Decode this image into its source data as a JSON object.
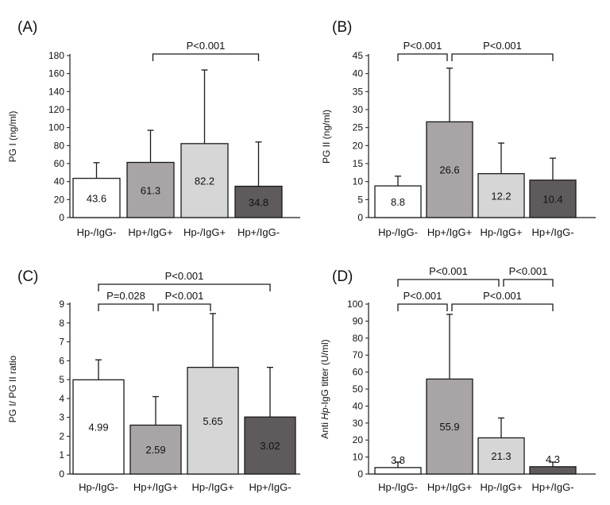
{
  "colors": {
    "bar_fills": [
      "#ffffff",
      "#a9a5a6",
      "#d6d6d6",
      "#5f5b5c"
    ],
    "stroke": "#1a1a1a"
  },
  "chart_data": [
    {
      "type": "bar",
      "panel_label": "(A)",
      "title": "",
      "xlabel": "",
      "ylabel": "PG I (ng/ml)",
      "ylabel_italic": "",
      "ylabel_suffix": "",
      "categories": [
        "Hp-/IgG-",
        "Hp+/IgG+",
        "Hp-/IgG+",
        "Hp+/IgG-"
      ],
      "values": [
        43.6,
        61.3,
        82.2,
        34.8
      ],
      "value_labels": [
        "43.6",
        "61.3",
        "82.2",
        "34.8"
      ],
      "error_upper": [
        61,
        97,
        164,
        84
      ],
      "ylim": [
        0,
        180
      ],
      "yticks": [
        "0",
        "20",
        "40",
        "60",
        "80",
        "100",
        "120",
        "140",
        "160",
        "180"
      ],
      "comparisons": [
        {
          "from": 1,
          "to": 3,
          "label": "P<0.001"
        }
      ]
    },
    {
      "type": "bar",
      "panel_label": "(B)",
      "title": "",
      "xlabel": "",
      "ylabel": "PG II (ng/ml)",
      "ylabel_italic": "",
      "ylabel_suffix": "",
      "categories": [
        "Hp-/IgG-",
        "Hp+/IgG+",
        "Hp-/IgG+",
        "Hp+/IgG-"
      ],
      "values": [
        8.8,
        26.6,
        12.2,
        10.4
      ],
      "value_labels": [
        "8.8",
        "26.6",
        "12.2",
        "10.4"
      ],
      "error_upper": [
        11.5,
        41.5,
        20.7,
        16.5
      ],
      "ylim": [
        0,
        45
      ],
      "yticks": [
        "0",
        "5",
        "10",
        "15",
        "20",
        "25",
        "30",
        "35",
        "40",
        "45"
      ],
      "comparisons": [
        {
          "from": 0,
          "to": 1,
          "label": "P<0.001"
        },
        {
          "from": 1,
          "to": 3,
          "label": "P<0.001"
        }
      ]
    },
    {
      "type": "bar",
      "panel_label": "(C)",
      "title": "",
      "xlabel": "",
      "ylabel": "PG I/ PG II ratio",
      "ylabel_italic": "",
      "ylabel_suffix": "",
      "categories": [
        "Hp-/IgG-",
        "Hp+/IgG+",
        "Hp-/IgG+",
        "Hp+/IgG-"
      ],
      "values": [
        4.99,
        2.59,
        5.65,
        3.02
      ],
      "value_labels": [
        "4.99",
        "2.59",
        "5.65",
        "3.02"
      ],
      "error_upper": [
        6.05,
        4.1,
        8.5,
        5.65
      ],
      "ylim": [
        0,
        9
      ],
      "yticks": [
        "0",
        "1",
        "2",
        "3",
        "4",
        "5",
        "6",
        "7",
        "8",
        "9"
      ],
      "comparisons": [
        {
          "from": 0,
          "to": 3,
          "label": "P<0.001"
        },
        {
          "from": 0,
          "to": 1,
          "label": "P=0.028"
        },
        {
          "from": 1,
          "to": 2,
          "label": "P<0.001"
        }
      ]
    },
    {
      "type": "bar",
      "panel_label": "(D)",
      "title": "",
      "xlabel": "",
      "ylabel": "Anti ",
      "ylabel_italic": "Hp",
      "ylabel_suffix": "-IgG titter (U/ml)",
      "categories": [
        "Hp-/IgG-",
        "Hp+/IgG+",
        "Hp-/IgG+",
        "Hp+/IgG-"
      ],
      "values": [
        3.8,
        55.9,
        21.3,
        4.3
      ],
      "value_labels": [
        "3.8",
        "55.9",
        "21.3",
        "4.3"
      ],
      "error_upper": [
        7,
        94,
        33,
        7
      ],
      "ylim": [
        0,
        100
      ],
      "yticks": [
        "0",
        "10",
        "20",
        "30",
        "40",
        "50",
        "60",
        "70",
        "80",
        "90",
        "100"
      ],
      "comparisons": [
        {
          "from": 0,
          "to": 2,
          "label": "P<0.001"
        },
        {
          "from": 2,
          "to": 3,
          "label": "P<0.001"
        },
        {
          "from": 0,
          "to": 1,
          "label": "P<0.001"
        },
        {
          "from": 1,
          "to": 3,
          "label": "P<0.001"
        }
      ]
    }
  ]
}
